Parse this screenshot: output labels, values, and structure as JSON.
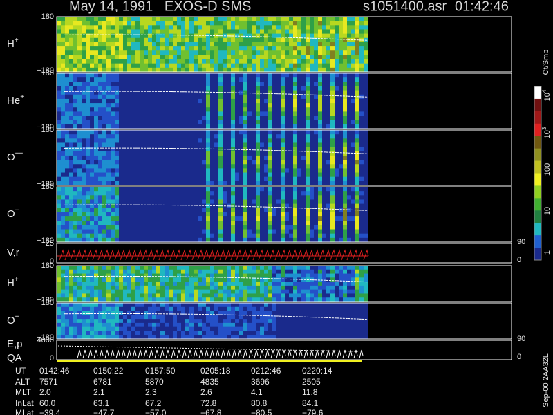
{
  "header": {
    "title": "May 14, 1991   EXOS-D SMS",
    "file": "s1051400.asr",
    "time": "01:42:46"
  },
  "panels": [
    {
      "label": "H",
      "sup": "+",
      "top": "180",
      "bottom": "−180"
    },
    {
      "label": "He",
      "sup": "+",
      "top": "180",
      "bottom": "−180"
    },
    {
      "label": "O",
      "sup": "++",
      "top": "180",
      "bottom": "−180"
    },
    {
      "label": "O",
      "sup": "+",
      "top": "180",
      "bottom": "−180"
    },
    {
      "label": "V,r",
      "top": "25",
      "bottom": "0",
      "right_top": "90",
      "right_bottom": "0"
    },
    {
      "label": "H",
      "sup": "+",
      "top": "180",
      "bottom": "−180"
    },
    {
      "label": "O",
      "sup": "+",
      "top": "180",
      "bottom": "−180"
    },
    {
      "label": "E,p",
      "label2": "QA",
      "top": "4000",
      "bottom": "0",
      "right_top": "90",
      "right_bottom": "0"
    }
  ],
  "colorbar": {
    "unit": "Ct/Smp",
    "labels": [
      {
        "base": "10",
        "exp": "4"
      },
      {
        "base": "10",
        "exp": "3"
      },
      {
        "base": "100"
      },
      {
        "base": "10"
      },
      {
        "base": "1"
      }
    ]
  },
  "footer": {
    "rows": [
      {
        "name": "UT",
        "values": [
          "0142:46",
          "0150:22",
          "0157:50",
          "0205:18",
          "0212:46",
          "0220:14"
        ]
      },
      {
        "name": "ALT",
        "values": [
          "7571",
          "6781",
          "5870",
          "4835",
          "3696",
          "2505"
        ]
      },
      {
        "name": "MLT",
        "values": [
          "2.0",
          "2.1",
          "2.3",
          "2.6",
          "4.1",
          "11.8"
        ]
      },
      {
        "name": "InLat",
        "values": [
          "60.0",
          "63.1",
          "67.2",
          "72.8",
          "80.8",
          "84.1"
        ]
      },
      {
        "name": "MLat",
        "values": [
          "−39.4",
          "−47.7",
          "−57.0",
          "−67.8",
          "−80.5",
          "−79.6"
        ]
      }
    ]
  },
  "stamp": "Sep-00 2AA32L"
}
